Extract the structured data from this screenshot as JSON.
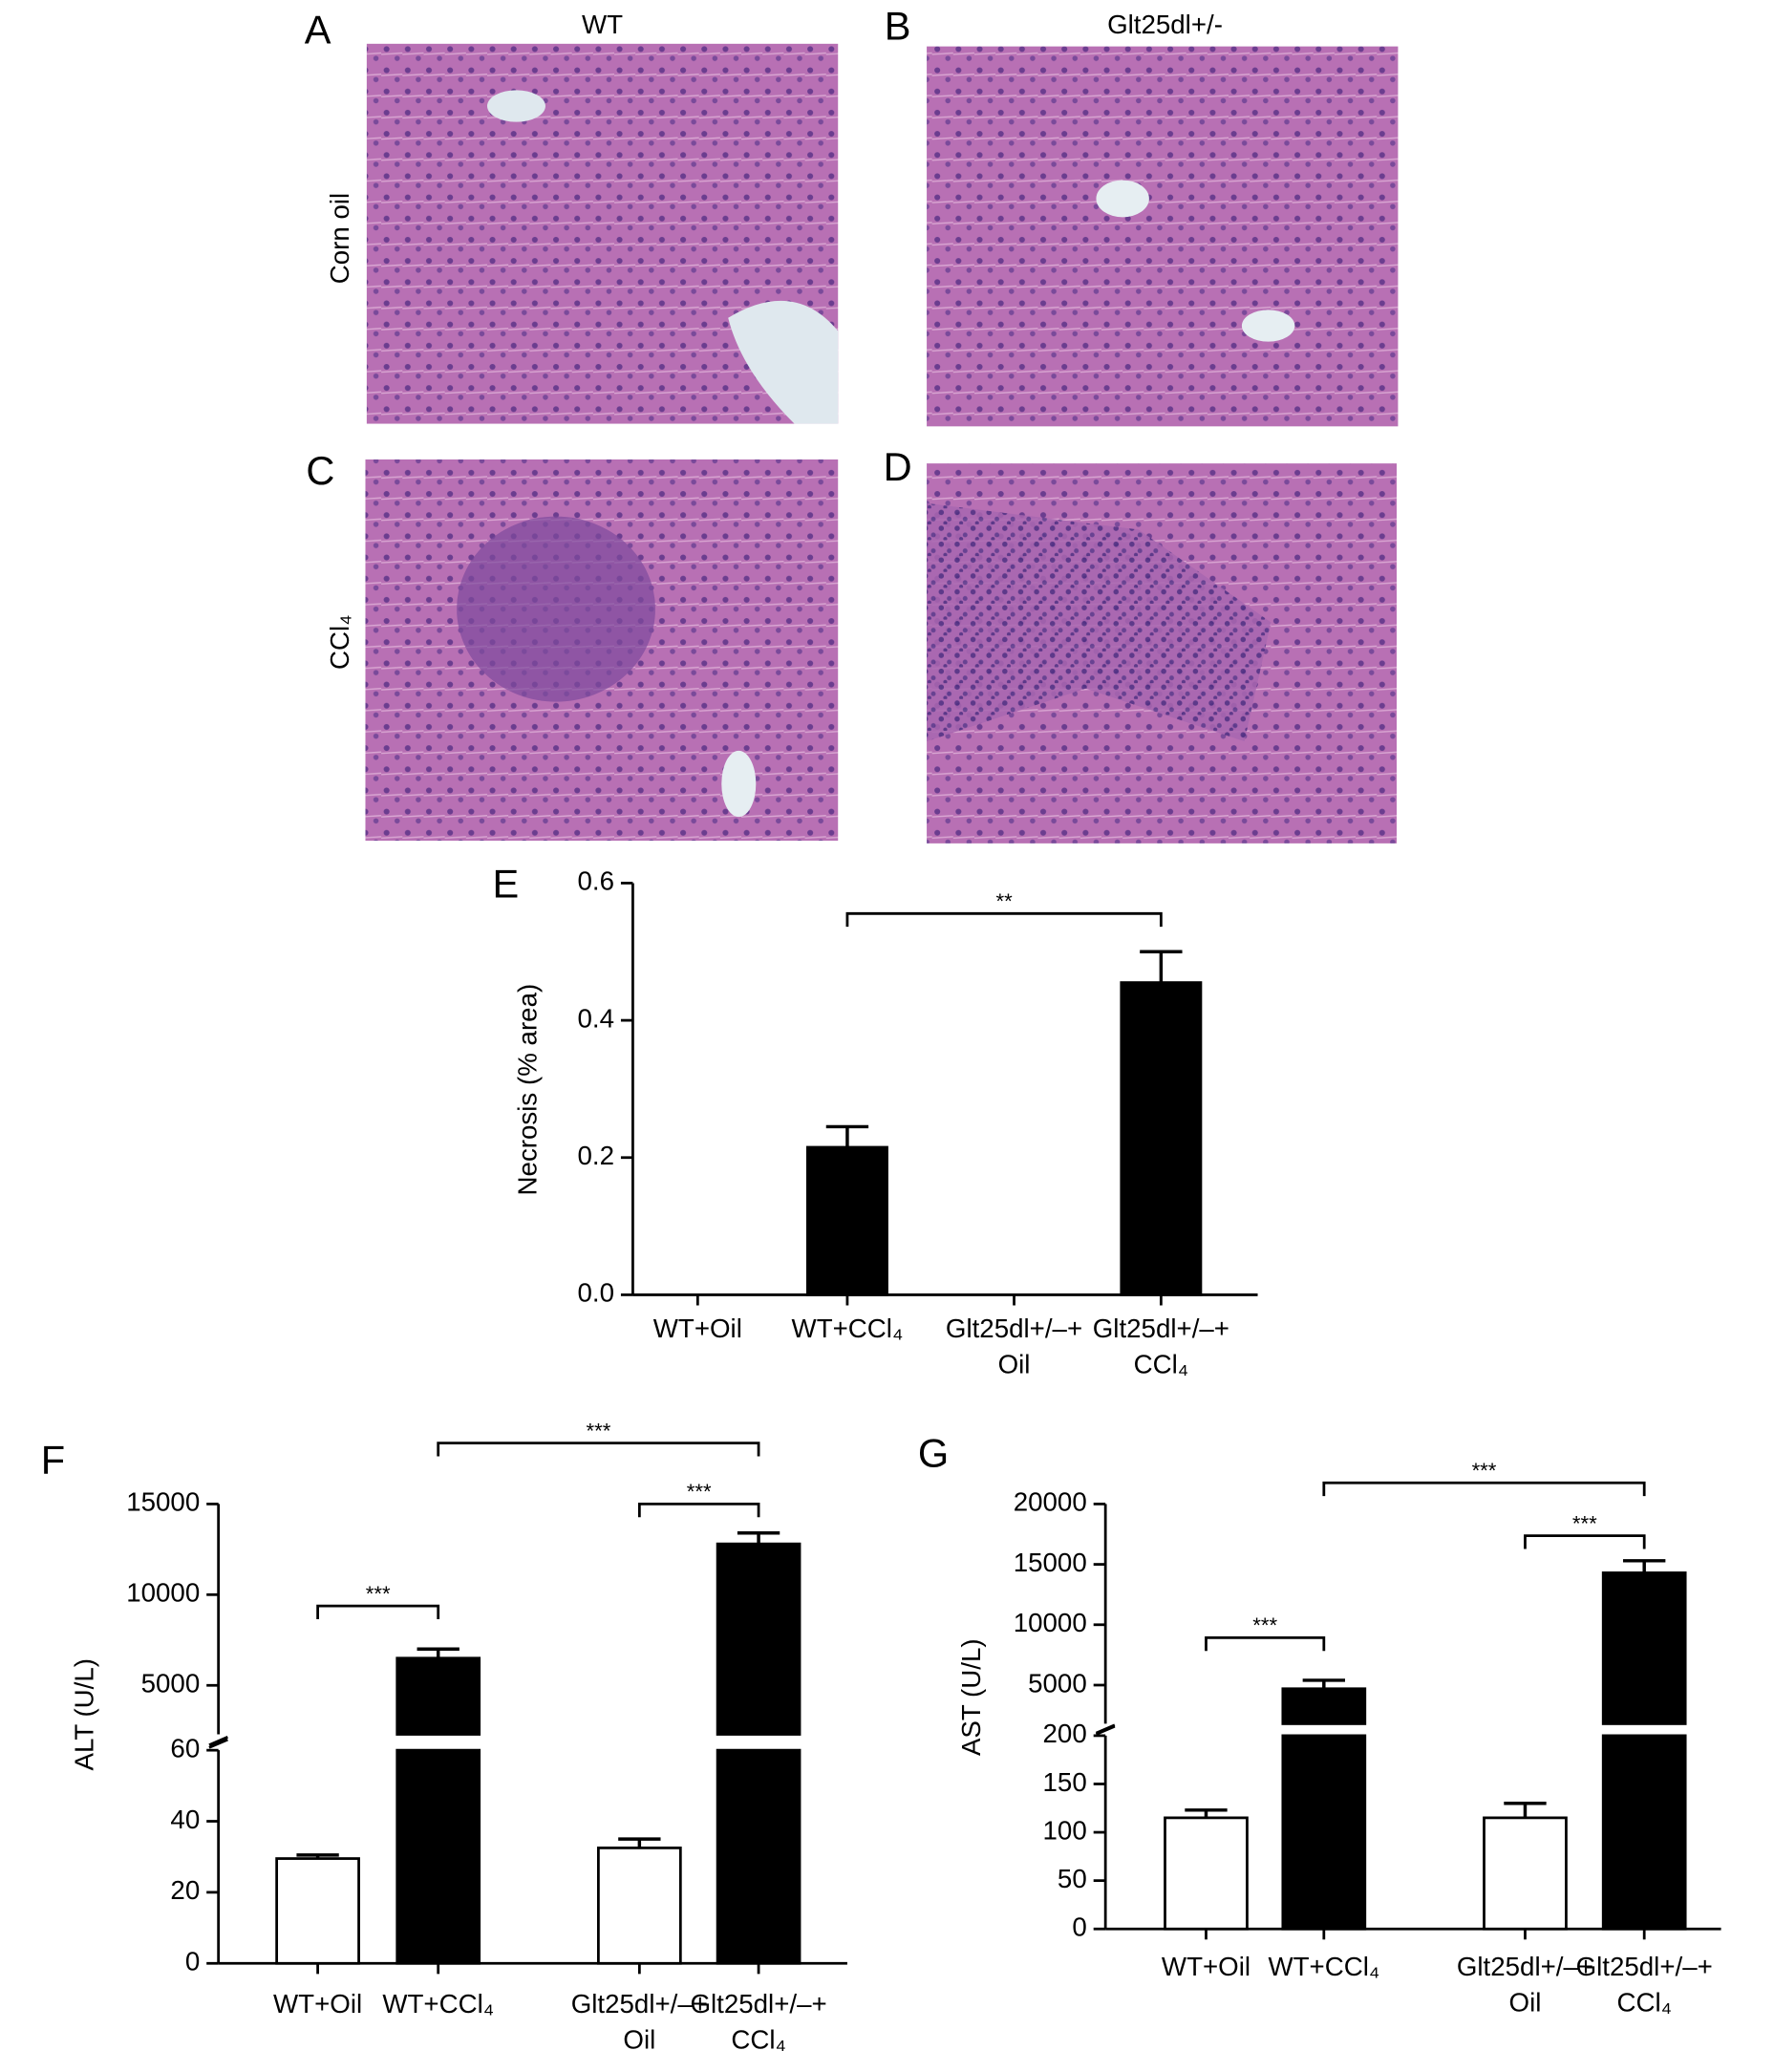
{
  "panel_labels": [
    "A",
    "B",
    "C",
    "D",
    "E",
    "F",
    "G"
  ],
  "column_labels": [
    "WT",
    "Glt25dl+/-"
  ],
  "row_labels": [
    "Corn oil",
    "CCl₄"
  ],
  "chart_data": [
    {
      "type": "bar",
      "ylabel": "Necrosis (% area)",
      "categories": [
        [
          "WT+Oil"
        ],
        [
          "WT+CCl₄"
        ],
        [
          "Glt25dl+/–+",
          "Oil"
        ],
        [
          "Glt25dl+/–+",
          "CCl₄"
        ]
      ],
      "values": [
        0,
        0.215,
        0,
        0.455
      ],
      "errors": [
        0,
        0.03,
        0,
        0.045
      ],
      "colors": [
        "#ffffff",
        "#000000",
        "#ffffff",
        "#000000"
      ],
      "ylim": [
        0,
        0.6
      ],
      "yticks": [
        {
          "value": 0,
          "label": "0.0"
        },
        0.2,
        0.4,
        0.6
      ],
      "annotations": [
        {
          "from": 1,
          "to": 3,
          "text": "**"
        }
      ]
    },
    {
      "type": "bar",
      "ylabel": "ALT (U/L)",
      "categories": [
        [
          "WT+Oil"
        ],
        [
          "WT+CCl₄"
        ],
        [
          "Glt25dl+/–+",
          "Oil"
        ],
        [
          "Glt25dl+/–+",
          "CCl₄"
        ]
      ],
      "values": [
        29.5,
        6500,
        32.5,
        12800
      ],
      "errors": [
        1,
        500,
        2.5,
        600
      ],
      "colors": [
        "#ffffff",
        "#000000",
        "#ffffff",
        "#000000"
      ],
      "segments": [
        {
          "ylim": [
            0,
            60
          ],
          "yticks": [
            0,
            20,
            40,
            60
          ]
        },
        {
          "ylim": [
            2300,
            15000
          ],
          "yticks": [
            5000,
            10000,
            15000
          ]
        }
      ],
      "annotations": [
        {
          "from": 0,
          "to": 1,
          "text": "***"
        },
        {
          "from": 1,
          "to": 3,
          "text": "***"
        },
        {
          "from": 2,
          "to": 3,
          "text": "***"
        }
      ]
    },
    {
      "type": "bar",
      "ylabel": "AST (U/L)",
      "categories": [
        [
          "WT+Oil"
        ],
        [
          "WT+CCl₄"
        ],
        [
          "Glt25dl+/–+",
          "Oil"
        ],
        [
          "Glt25dl+/–+",
          "CCl₄"
        ]
      ],
      "values": [
        115,
        4700,
        115,
        14300
      ],
      "errors": [
        8,
        700,
        15,
        1000
      ],
      "colors": [
        "#ffffff",
        "#000000",
        "#ffffff",
        "#000000"
      ],
      "segments": [
        {
          "ylim": [
            0,
            200
          ],
          "yticks": [
            0,
            50,
            100,
            150,
            200
          ]
        },
        {
          "ylim": [
            1800,
            20000
          ],
          "yticks": [
            5000,
            10000,
            15000,
            20000
          ]
        }
      ],
      "annotations": [
        {
          "from": 0,
          "to": 1,
          "text": "***"
        },
        {
          "from": 1,
          "to": 3,
          "text": "***"
        },
        {
          "from": 2,
          "to": 3,
          "text": "***"
        }
      ]
    }
  ]
}
